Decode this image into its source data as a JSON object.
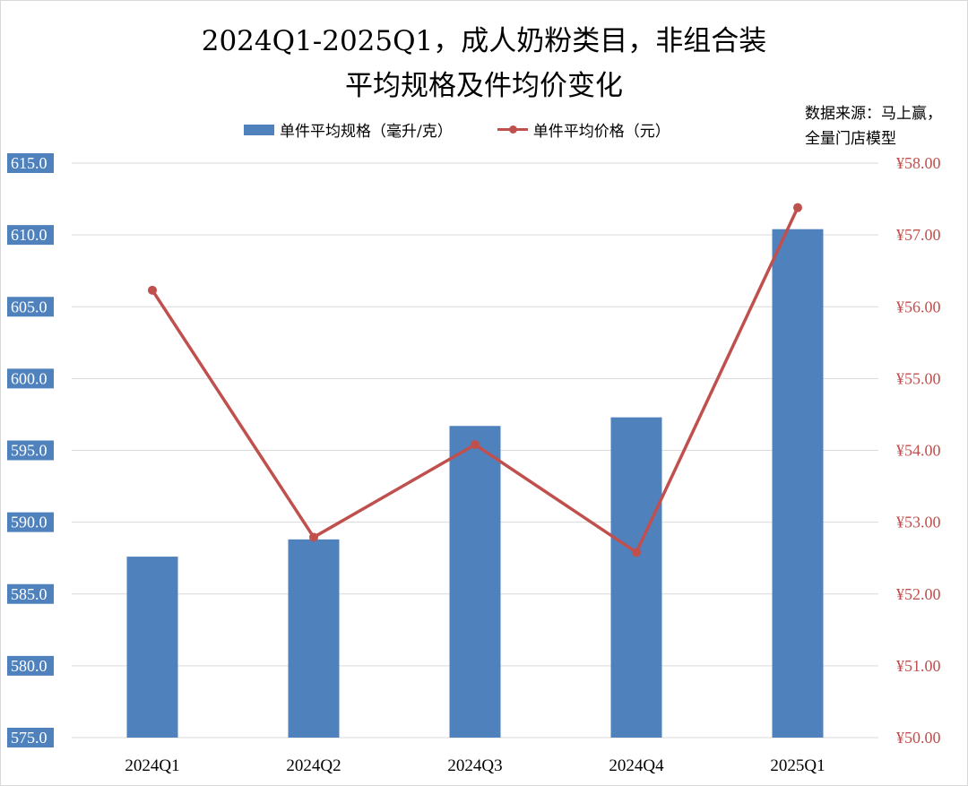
{
  "title_line1": "2024Q1-2025Q1，成人奶粉类目，非组合装",
  "title_line2": "平均规格及件均价变化",
  "source_line1": "数据来源：马上赢，",
  "source_line2": "全量门店模型",
  "colors": {
    "bar": "#4f81bd",
    "line": "#c0504d",
    "grid": "#d9d9d9",
    "left_label_bg": "#4f81bd"
  },
  "chart_data": {
    "type": "bar",
    "categories": [
      "2024Q1",
      "2024Q2",
      "2024Q3",
      "2024Q4",
      "2025Q1"
    ],
    "series": [
      {
        "name": "单件平均规格（毫升/克）",
        "type": "bar",
        "axis": "left",
        "values": [
          587.6,
          588.8,
          596.7,
          597.3,
          610.4
        ]
      },
      {
        "name": "单件平均价格（元）",
        "type": "line",
        "axis": "right",
        "values": [
          56.23,
          52.79,
          54.08,
          52.58,
          57.38
        ]
      }
    ],
    "y_left": {
      "min": 575,
      "max": 615,
      "step": 5,
      "ticks": [
        "575.0",
        "580.0",
        "585.0",
        "590.0",
        "595.0",
        "600.0",
        "605.0",
        "610.0",
        "615.0"
      ]
    },
    "y_right": {
      "min": 50,
      "max": 58,
      "step": 1,
      "ticks": [
        "¥50.00",
        "¥51.00",
        "¥52.00",
        "¥53.00",
        "¥54.00",
        "¥55.00",
        "¥56.00",
        "¥57.00",
        "¥58.00"
      ]
    },
    "grid": true,
    "legend_position": "top"
  }
}
